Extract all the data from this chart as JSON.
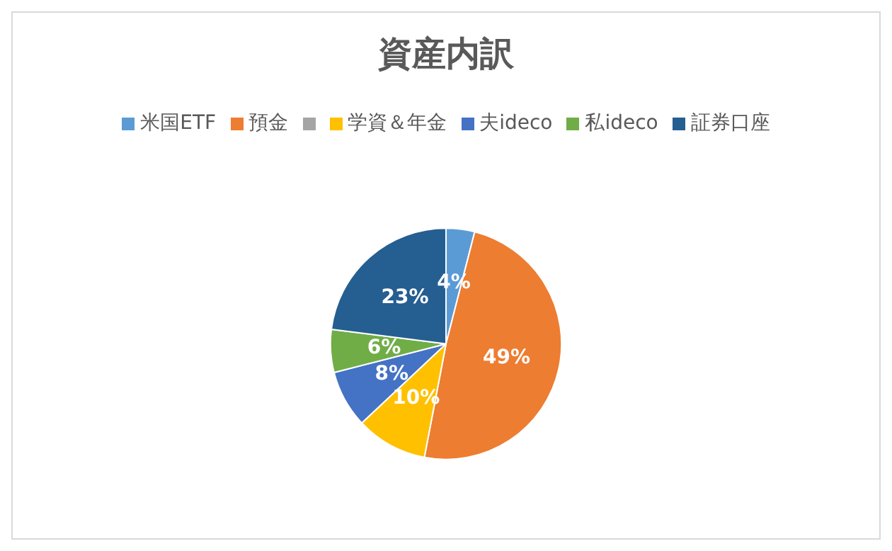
{
  "chart_data": {
    "type": "pie",
    "title": "資産内訳",
    "categories": [
      "米国ETF",
      "預金",
      null,
      "学資＆年金",
      "夫ideco",
      "私ideco",
      "証券口座"
    ],
    "values": [
      4,
      49,
      0,
      10,
      8,
      6,
      23
    ],
    "colors": [
      "#5b9bd5",
      "#ed7d31",
      "#a5a5a5",
      "#ffc000",
      "#4472c4",
      "#70ad47",
      "#255e91"
    ],
    "value_labels": [
      "4%",
      "49%",
      null,
      "10%",
      "8%",
      "6%",
      "23%"
    ],
    "legend": "top"
  }
}
